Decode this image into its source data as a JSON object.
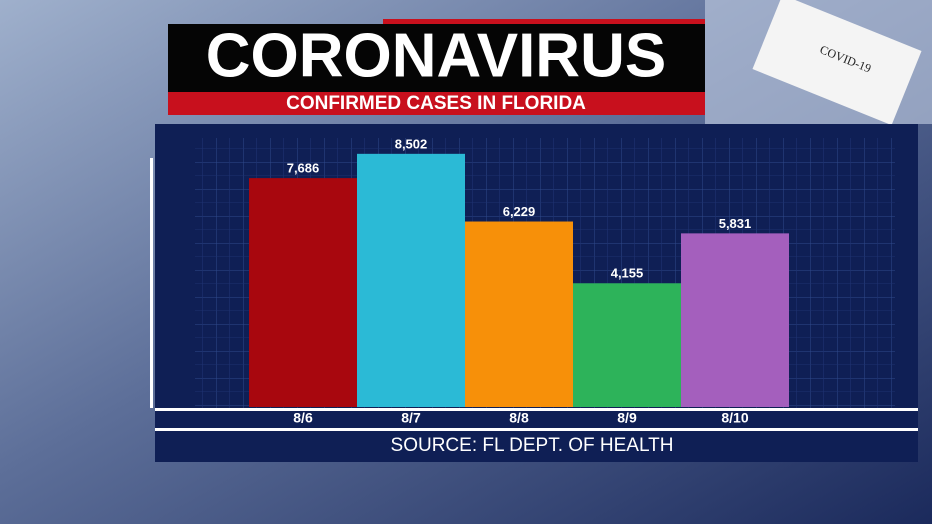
{
  "chart_data": {
    "type": "bar",
    "title": "CORONAVIRUS",
    "subtitle": "CONFIRMED CASES IN FLORIDA",
    "categories": [
      "8/6",
      "8/7",
      "8/8",
      "8/9",
      "8/10"
    ],
    "values": [
      7686,
      8502,
      6229,
      4155,
      5831
    ],
    "value_labels": [
      "7,686",
      "8,502",
      "6,229",
      "4,155",
      "5,831"
    ],
    "colors": [
      "#a8070e",
      "#2bbad6",
      "#f79009",
      "#2db35a",
      "#a45fbd"
    ],
    "ylim": [
      0,
      9000
    ],
    "source": "SOURCE: FL DEPT. OF HEALTH",
    "image_text": "COVID-19"
  }
}
